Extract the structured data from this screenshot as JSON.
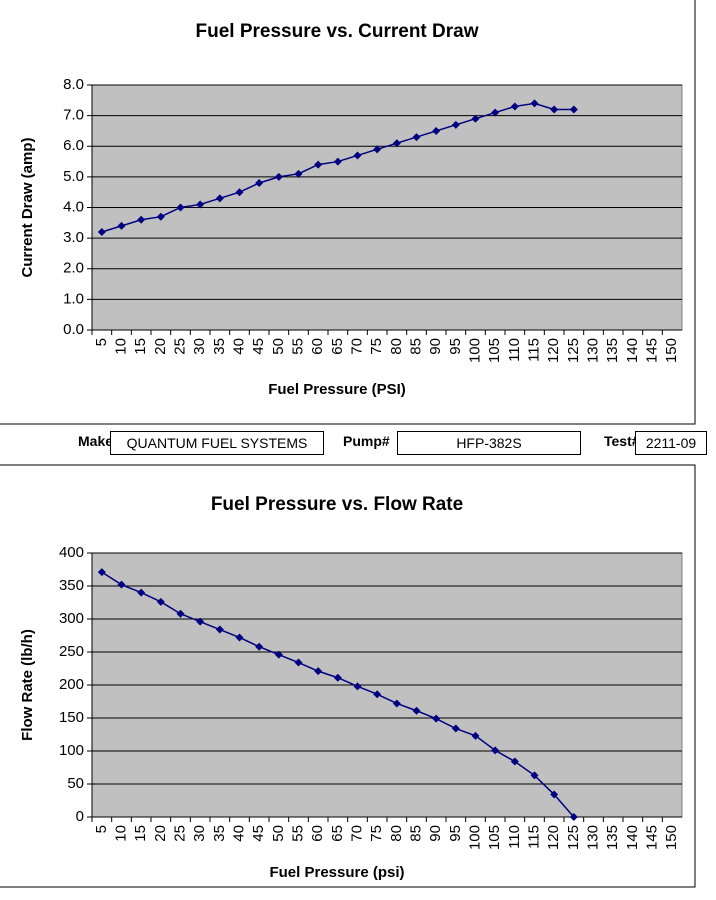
{
  "chart_data": [
    {
      "type": "line",
      "title": "Fuel Pressure vs. Current Draw",
      "x_label": "Fuel Pressure (PSI)",
      "y_label": "Current Draw (amp)",
      "categories": [
        "5",
        "10",
        "15",
        "20",
        "25",
        "30",
        "35",
        "40",
        "45",
        "50",
        "55",
        "60",
        "65",
        "70",
        "75",
        "80",
        "85",
        "90",
        "95",
        "100",
        "105",
        "110",
        "115",
        "120",
        "125",
        "130",
        "135",
        "140",
        "145",
        "150"
      ],
      "values": [
        3.2,
        3.4,
        3.6,
        3.7,
        4.0,
        4.1,
        4.3,
        4.5,
        4.8,
        5.0,
        5.1,
        5.4,
        5.5,
        5.7,
        5.9,
        6.1,
        6.3,
        6.5,
        6.7,
        6.9,
        7.1,
        7.3,
        7.4,
        7.2,
        7.2,
        null,
        null,
        null,
        null,
        null
      ],
      "color": "#000080",
      "ylim": [
        0,
        8
      ],
      "yticks": [
        {
          "value": 0,
          "label": "0.0"
        },
        {
          "value": 1,
          "label": "1.0"
        },
        {
          "value": 2,
          "label": "2.0"
        },
        {
          "value": 3,
          "label": "3.0"
        },
        {
          "value": 4,
          "label": "4.0"
        },
        {
          "value": 5,
          "label": "5.0"
        },
        {
          "value": 6,
          "label": "6.0"
        },
        {
          "value": 7,
          "label": "7.0"
        },
        {
          "value": 8,
          "label": "8.0"
        }
      ],
      "grid": true
    },
    {
      "type": "line",
      "title": "Fuel Pressure vs. Flow Rate",
      "x_label": "Fuel Pressure (psi)",
      "y_label": "Flow Rate (lb/h)",
      "categories": [
        "5",
        "10",
        "15",
        "20",
        "25",
        "30",
        "35",
        "40",
        "45",
        "50",
        "55",
        "60",
        "65",
        "70",
        "75",
        "80",
        "85",
        "90",
        "95",
        "100",
        "105",
        "110",
        "115",
        "120",
        "125",
        "130",
        "135",
        "140",
        "145",
        "150"
      ],
      "values": [
        371,
        352,
        340,
        326,
        308,
        296,
        284,
        272,
        258,
        246,
        234,
        221,
        211,
        198,
        186,
        172,
        161,
        149,
        134,
        123,
        101,
        84,
        63,
        34,
        0,
        null,
        null,
        null,
        null,
        null
      ],
      "color": "#000080",
      "ylim": [
        0,
        400
      ],
      "yticks": [
        0,
        50,
        100,
        150,
        200,
        250,
        300,
        350,
        400
      ],
      "grid": true
    }
  ],
  "form": {
    "make_label": "Make",
    "make": "QUANTUM FUEL SYSTEMS",
    "pump_label": "Pump#",
    "pump": "HFP-382S",
    "test_label": "Test#",
    "test": "2211-09"
  }
}
